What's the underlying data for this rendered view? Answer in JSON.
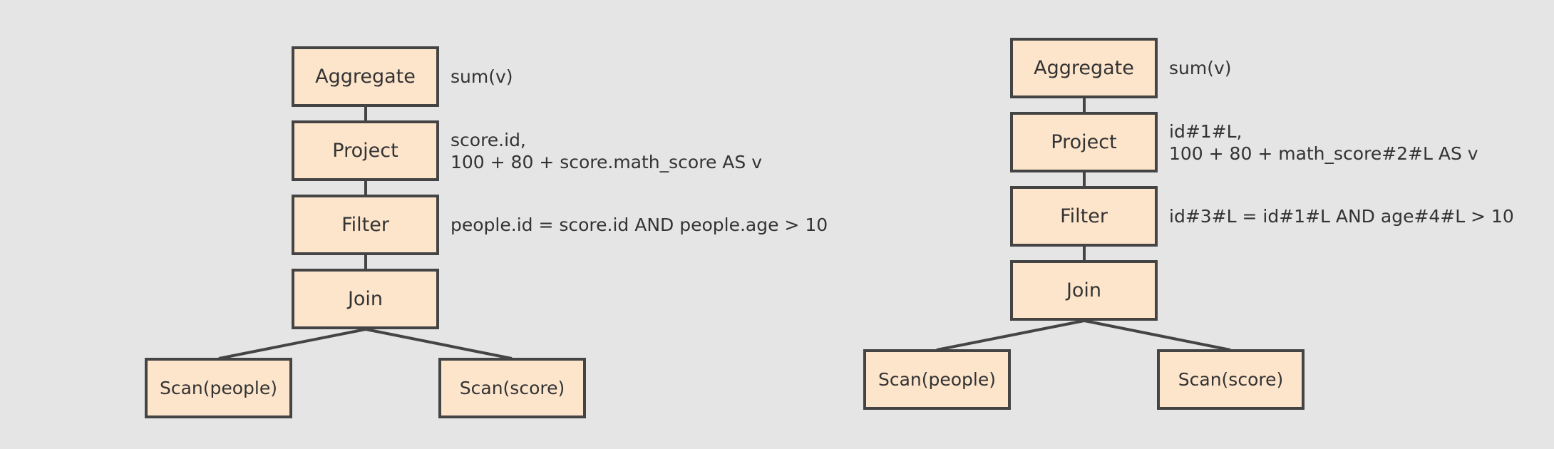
{
  "colors": {
    "background": "#e5e5e5",
    "node_fill": "#fde5cc",
    "node_border": "#444444",
    "edge": "#444444",
    "text": "#333333"
  },
  "plans": [
    {
      "nodes": {
        "aggregate": "Aggregate",
        "project": "Project",
        "filter": "Filter",
        "join": "Join",
        "scan_people": "Scan(people)",
        "scan_score": "Scan(score)"
      },
      "annotations": {
        "aggregate": [
          "sum(v)"
        ],
        "project": [
          "score.id,",
          "100 + 80 + score.math_score AS v"
        ],
        "filter": [
          "people.id = score.id AND people.age > 10"
        ]
      }
    },
    {
      "nodes": {
        "aggregate": "Aggregate",
        "project": "Project",
        "filter": "Filter",
        "join": "Join",
        "scan_people": "Scan(people)",
        "scan_score": "Scan(score)"
      },
      "annotations": {
        "aggregate": [
          "sum(v)"
        ],
        "project": [
          "id#1#L,",
          "100 + 80 + math_score#2#L AS v"
        ],
        "filter": [
          "id#3#L = id#1#L AND age#4#L > 10"
        ]
      }
    }
  ]
}
